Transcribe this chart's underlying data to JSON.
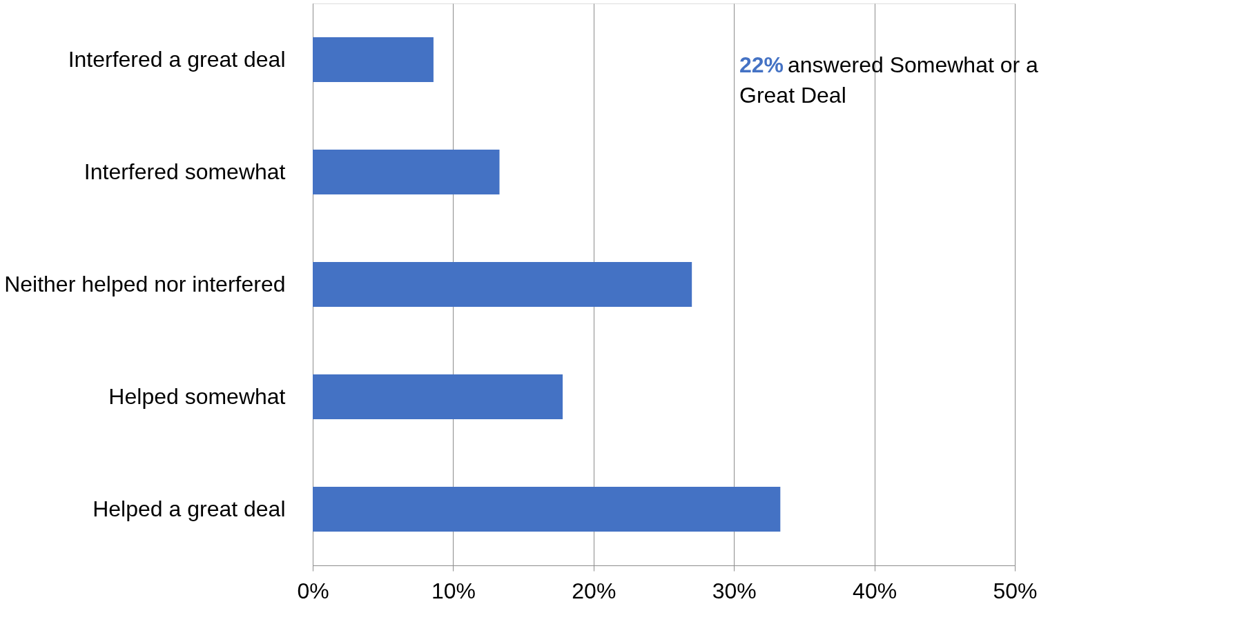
{
  "chart_data": {
    "type": "bar",
    "orientation": "horizontal",
    "categories": [
      "Interfered a great deal",
      "Interfered somewhat",
      "Neither helped nor interfered",
      "Helped somewhat",
      "Helped a great deal"
    ],
    "values": [
      8.6,
      13.3,
      27.0,
      17.8,
      33.3
    ],
    "color": "#4472c4",
    "xlim": [
      0,
      50
    ],
    "xticks": [
      {
        "value": 0,
        "label": "0%"
      },
      {
        "value": 10,
        "label": "10%"
      },
      {
        "value": 20,
        "label": "20%"
      },
      {
        "value": 30,
        "label": "30%"
      },
      {
        "value": 40,
        "label": "40%"
      },
      {
        "value": 50,
        "label": "50%"
      }
    ],
    "grid": "x",
    "annotations": [
      "22% answered Somewhat or a Great Deal"
    ]
  }
}
